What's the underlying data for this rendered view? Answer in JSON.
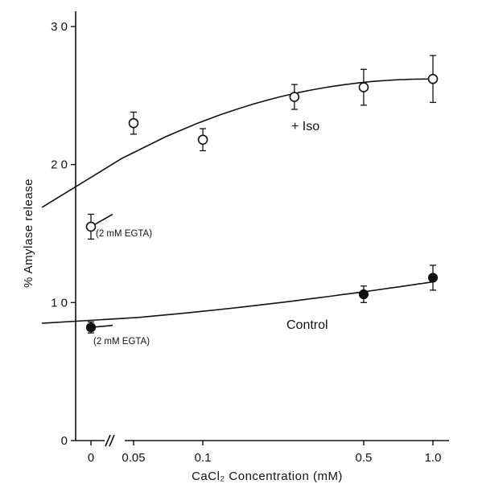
{
  "chart_data": {
    "type": "scatter",
    "title": "",
    "xlabel": "CaCl₂    Concentration   (mM)",
    "ylabel": "%    Amylase   release",
    "x_ticks": [
      {
        "label": "0",
        "value": 0
      },
      {
        "label": "0.05",
        "value": 0.05
      },
      {
        "label": "0.1",
        "value": 0.1
      },
      {
        "label": "0.5",
        "value": 0.5
      },
      {
        "label": "1.0",
        "value": 1.0
      }
    ],
    "y_ticks": [
      {
        "label": "0",
        "value": 0
      },
      {
        "label": "1 0",
        "value": 10
      },
      {
        "label": "2 0",
        "value": 20
      },
      {
        "label": "3 0",
        "value": 30
      }
    ],
    "ylim": [
      0,
      31
    ],
    "x_axis_break": true,
    "grid": false,
    "series": [
      {
        "name": "+ Iso",
        "marker": "open-circle",
        "x": [
          0,
          0.05,
          0.1,
          0.25,
          0.5,
          1.0
        ],
        "y": [
          15.5,
          23.0,
          21.8,
          24.9,
          25.6,
          26.2
        ],
        "err": [
          0.9,
          0.8,
          0.8,
          0.9,
          1.3,
          1.7
        ],
        "annotation": "(2 mM EGTA)"
      },
      {
        "name": "Control",
        "marker": "filled-circle",
        "x": [
          0,
          0.5,
          1.0
        ],
        "y": [
          8.2,
          10.6,
          11.8
        ],
        "err": [
          0.4,
          0.6,
          0.9
        ],
        "annotation": "(2 mM EGTA)"
      }
    ]
  }
}
